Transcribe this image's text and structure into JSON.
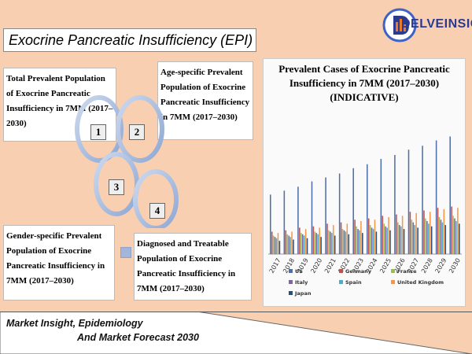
{
  "page": {
    "title": "Exocrine Pancreatic Insufficiency (EPI)"
  },
  "logo": {
    "text": "DELVEINSIGHT",
    "icon": "delveinsight-logo-icon"
  },
  "steps": [
    {
      "number": "1",
      "label": "Total Prevalent Population of Exocrine Pancreatic Insufficiency in 7MM (2017–2030)"
    },
    {
      "number": "2",
      "label": "Age-specific Prevalent Population of Exocrine Pancreatic Insufficiency in 7MM (2017–2030)"
    },
    {
      "number": "3",
      "label": "Gender-specific Prevalent Population of Exocrine Pancreatic Insufficiency in 7MM (2017–2030)"
    },
    {
      "number": "4",
      "label": "Diagnosed and Treatable Population of Exocrine Pancreatic Insufficiency in 7MM (2017–2030)"
    }
  ],
  "chart_data": {
    "type": "bar",
    "title": "Prevalent Cases of Exocrine Pancreatic Insufficiency in 7MM (2017–2030) (INDICATIVE)",
    "xlabel": "",
    "ylabel": "",
    "categories": [
      "2017",
      "2018",
      "2019",
      "2020",
      "2021",
      "2022",
      "2023",
      "2024",
      "2025",
      "2026",
      "2027",
      "2028",
      "2029",
      "2030"
    ],
    "ylim": [
      0,
      100
    ],
    "grid": false,
    "legend_position": "bottom",
    "series": [
      {
        "name": "US",
        "color": "#4f6fa8",
        "values": [
          45,
          48,
          51,
          55,
          58,
          61,
          65,
          68,
          72,
          75,
          79,
          82,
          86,
          89
        ]
      },
      {
        "name": "Germany",
        "color": "#c0504d",
        "values": [
          17,
          18,
          20,
          21,
          23,
          24,
          26,
          27,
          29,
          30,
          32,
          33,
          35,
          36
        ]
      },
      {
        "name": "France",
        "color": "#9bbb59",
        "values": [
          14,
          15,
          16,
          17,
          18,
          19,
          21,
          22,
          23,
          24,
          26,
          27,
          28,
          29
        ]
      },
      {
        "name": "Italy",
        "color": "#8064a2",
        "values": [
          13,
          14,
          15,
          16,
          17,
          18,
          19,
          20,
          21,
          22,
          24,
          25,
          26,
          27
        ]
      },
      {
        "name": "Spain",
        "color": "#4bacc6",
        "values": [
          12,
          13,
          14,
          15,
          16,
          17,
          18,
          19,
          20,
          21,
          22,
          23,
          24,
          25
        ]
      },
      {
        "name": "United Kingdom",
        "color": "#f79646",
        "values": [
          16,
          17,
          19,
          20,
          22,
          23,
          25,
          26,
          28,
          29,
          31,
          32,
          34,
          35
        ]
      },
      {
        "name": "Japan",
        "color": "#2c4d75",
        "values": [
          10,
          11,
          12,
          13,
          14,
          15,
          16,
          17,
          18,
          19,
          20,
          21,
          22,
          23
        ]
      }
    ]
  },
  "footer": {
    "line1": "Market Insight, Epidemiology",
    "line2": "And Market Forecast 2030"
  }
}
